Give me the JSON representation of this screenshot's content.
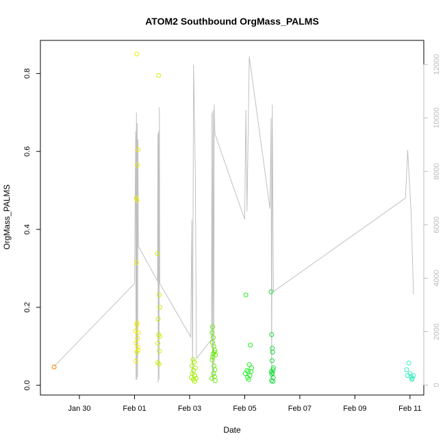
{
  "chart_data": {
    "type": "scatter",
    "title": "ATOM2 Southbound OrgMass_PALMS",
    "xlabel": "Date",
    "ylabel": "OrgMass_PALMS",
    "x_axis": {
      "range": [
        "2017-01-28T14:00",
        "2017-02-11T12:00"
      ],
      "ticks": [
        {
          "date": "2017-01-30",
          "label": "Jan 30"
        },
        {
          "date": "2017-02-01",
          "label": "Feb 01"
        },
        {
          "date": "2017-02-03",
          "label": "Feb 03"
        },
        {
          "date": "2017-02-05",
          "label": "Feb 05"
        },
        {
          "date": "2017-02-07",
          "label": "Feb 07"
        },
        {
          "date": "2017-02-09",
          "label": "Feb 09"
        },
        {
          "date": "2017-02-11",
          "label": "Feb 11"
        }
      ]
    },
    "y_axis": {
      "range": [
        -0.025,
        0.885
      ],
      "ticks": [
        {
          "value": 0.0,
          "label": "0.0"
        },
        {
          "value": 0.2,
          "label": "0.2"
        },
        {
          "value": 0.4,
          "label": "0.4"
        },
        {
          "value": 0.6,
          "label": "0.6"
        },
        {
          "value": 0.8,
          "label": "0.8"
        }
      ]
    },
    "y2_axis": {
      "range": [
        -370,
        12900
      ],
      "ticks": [
        {
          "value": 0,
          "label": "0"
        },
        {
          "value": 2000,
          "label": "2000"
        },
        {
          "value": 4000,
          "label": "4000"
        },
        {
          "value": 6000,
          "label": "6000"
        },
        {
          "value": 8000,
          "label": "8000"
        },
        {
          "value": 10000,
          "label": "10000"
        },
        {
          "value": 12000,
          "label": "12000"
        }
      ]
    },
    "colors": {
      "flight_1": "#ff7f00",
      "flight_2": "#eeee00",
      "flight_3": "#ccf000",
      "flight_4": "#a6ee00",
      "flight_5": "#66ee00",
      "flight_6": "#22ee22",
      "flight_7": "#11dd33",
      "flight_8": "#33eebb",
      "altitude_line": "#c0c0c0"
    },
    "series": [
      {
        "color_key": "flight_1",
        "points": [
          [
            "2017-01-29T02:00",
            0.047
          ]
        ]
      },
      {
        "color_key": "flight_2",
        "points": [
          [
            "2017-02-01T02:00",
            0.85
          ],
          [
            "2017-02-01T03:00",
            0.605
          ],
          [
            "2017-02-01T02:30",
            0.565
          ],
          [
            "2017-02-01T01:30",
            0.48
          ],
          [
            "2017-02-01T02:10",
            0.475
          ],
          [
            "2017-02-01T01:40",
            0.315
          ],
          [
            "2017-02-01T02:20",
            0.16
          ],
          [
            "2017-02-01T01:50",
            0.155
          ],
          [
            "2017-02-01T01:00",
            0.14
          ],
          [
            "2017-02-01T03:10",
            0.135
          ],
          [
            "2017-02-01T02:40",
            0.12
          ],
          [
            "2017-02-01T01:20",
            0.108
          ],
          [
            "2017-02-01T02:50",
            0.098
          ],
          [
            "2017-02-01T03:20",
            0.09
          ],
          [
            "2017-02-01T02:00",
            0.085
          ],
          [
            "2017-02-01T01:10",
            0.062
          ]
        ]
      },
      {
        "color_key": "flight_3",
        "points": [
          [
            "2017-02-01T21:00",
            0.795
          ],
          [
            "2017-02-01T20:00",
            0.338
          ],
          [
            "2017-02-01T21:30",
            0.232
          ],
          [
            "2017-02-01T22:00",
            0.2
          ],
          [
            "2017-02-01T20:40",
            0.17
          ],
          [
            "2017-02-01T21:10",
            0.13
          ],
          [
            "2017-02-01T21:50",
            0.125
          ],
          [
            "2017-02-01T20:20",
            0.108
          ],
          [
            "2017-02-01T21:40",
            0.088
          ],
          [
            "2017-02-01T20:10",
            0.058
          ],
          [
            "2017-02-01T21:20",
            0.055
          ]
        ]
      },
      {
        "color_key": "flight_4",
        "points": [
          [
            "2017-02-03T03:00",
            0.066
          ],
          [
            "2017-02-03T04:00",
            0.06
          ],
          [
            "2017-02-03T02:00",
            0.05
          ],
          [
            "2017-02-03T05:00",
            0.045
          ],
          [
            "2017-02-03T03:30",
            0.038
          ],
          [
            "2017-02-03T02:30",
            0.03
          ],
          [
            "2017-02-03T04:30",
            0.025
          ],
          [
            "2017-02-03T01:30",
            0.02
          ],
          [
            "2017-02-03T05:30",
            0.018
          ],
          [
            "2017-02-03T03:15",
            0.015
          ],
          [
            "2017-02-03T04:15",
            0.01
          ]
        ]
      },
      {
        "color_key": "flight_5",
        "points": [
          [
            "2017-02-03T20:00",
            0.15
          ],
          [
            "2017-02-03T19:30",
            0.135
          ],
          [
            "2017-02-03T20:40",
            0.122
          ],
          [
            "2017-02-03T19:50",
            0.11
          ],
          [
            "2017-02-03T21:00",
            0.1
          ],
          [
            "2017-02-03T22:00",
            0.09
          ],
          [
            "2017-02-03T21:30",
            0.085
          ],
          [
            "2017-02-03T20:20",
            0.08
          ],
          [
            "2017-02-03T22:30",
            0.078
          ],
          [
            "2017-02-03T20:10",
            0.072
          ],
          [
            "2017-02-03T19:40",
            0.065
          ],
          [
            "2017-02-03T21:10",
            0.05
          ],
          [
            "2017-02-03T22:10",
            0.04
          ],
          [
            "2017-02-03T20:50",
            0.03
          ],
          [
            "2017-02-03T21:40",
            0.022
          ],
          [
            "2017-02-03T19:20",
            0.018
          ],
          [
            "2017-02-03T22:20",
            0.012
          ]
        ]
      },
      {
        "color_key": "flight_6",
        "points": [
          [
            "2017-02-05T01:00",
            0.232
          ],
          [
            "2017-02-05T05:00",
            0.103
          ],
          [
            "2017-02-05T04:00",
            0.053
          ],
          [
            "2017-02-05T06:00",
            0.045
          ],
          [
            "2017-02-05T02:00",
            0.038
          ],
          [
            "2017-02-05T03:00",
            0.035
          ],
          [
            "2017-02-05T00:30",
            0.03
          ],
          [
            "2017-02-05T04:30",
            0.025
          ],
          [
            "2017-02-05T02:30",
            0.02
          ],
          [
            "2017-02-05T05:30",
            0.035
          ],
          [
            "2017-02-05T03:30",
            0.015
          ]
        ]
      },
      {
        "color_key": "flight_7",
        "points": [
          [
            "2017-02-05T23:00",
            0.24
          ],
          [
            "2017-02-05T23:30",
            0.13
          ],
          [
            "2017-02-06T00:00",
            0.095
          ],
          [
            "2017-02-06T00:20",
            0.085
          ],
          [
            "2017-02-05T23:50",
            0.063
          ],
          [
            "2017-02-06T01:00",
            0.045
          ],
          [
            "2017-02-06T00:40",
            0.04
          ],
          [
            "2017-02-05T23:10",
            0.035
          ],
          [
            "2017-02-06T00:10",
            0.032
          ],
          [
            "2017-02-05T23:40",
            0.028
          ],
          [
            "2017-02-06T00:50",
            0.02
          ],
          [
            "2017-02-05T23:20",
            0.012
          ],
          [
            "2017-02-06T00:30",
            0.01
          ]
        ]
      },
      {
        "color_key": "flight_8",
        "points": [
          [
            "2017-02-10T21:00",
            0.04
          ],
          [
            "2017-02-10T23:00",
            0.057
          ],
          [
            "2017-02-11T01:00",
            0.022
          ],
          [
            "2017-02-11T02:00",
            0.018
          ],
          [
            "2017-02-11T00:00",
            0.03
          ],
          [
            "2017-02-10T22:00",
            0.025
          ],
          [
            "2017-02-11T03:00",
            0.025
          ],
          [
            "2017-02-11T01:30",
            0.015
          ]
        ]
      }
    ],
    "altitude_series": {
      "axis": "y2",
      "points": [
        [
          "2017-01-29T02:00",
          700
        ],
        [
          "2017-02-01T00:00",
          3800
        ],
        [
          "2017-02-01T01:00",
          9500
        ],
        [
          "2017-02-01T01:20",
          200
        ],
        [
          "2017-02-01T01:40",
          10200
        ],
        [
          "2017-02-01T02:00",
          200
        ],
        [
          "2017-02-01T02:20",
          9800
        ],
        [
          "2017-02-01T02:40",
          300
        ],
        [
          "2017-02-01T03:00",
          9200
        ],
        [
          "2017-02-01T03:20",
          5200
        ],
        [
          "2017-02-01T20:00",
          3900
        ],
        [
          "2017-02-01T20:20",
          9400
        ],
        [
          "2017-02-01T20:40",
          100
        ],
        [
          "2017-02-01T21:00",
          9500
        ],
        [
          "2017-02-01T21:20",
          200
        ],
        [
          "2017-02-01T21:40",
          10400
        ],
        [
          "2017-02-01T22:00",
          3800
        ],
        [
          "2017-02-03T01:00",
          1800
        ],
        [
          "2017-02-03T02:00",
          6200
        ],
        [
          "2017-02-03T02:30",
          300
        ],
        [
          "2017-02-03T03:30",
          12000
        ],
        [
          "2017-02-03T05:00",
          8000
        ],
        [
          "2017-02-03T06:00",
          1000
        ],
        [
          "2017-02-03T19:00",
          1700
        ],
        [
          "2017-02-03T19:30",
          10200
        ],
        [
          "2017-02-03T20:00",
          200
        ],
        [
          "2017-02-03T20:30",
          10300
        ],
        [
          "2017-02-03T21:00",
          300
        ],
        [
          "2017-02-03T21:30",
          10500
        ],
        [
          "2017-02-03T22:00",
          9400
        ],
        [
          "2017-02-05T00:00",
          6200
        ],
        [
          "2017-02-05T01:00",
          10300
        ],
        [
          "2017-02-05T02:00",
          6500
        ],
        [
          "2017-02-05T04:00",
          12300
        ],
        [
          "2017-02-05T22:00",
          6600
        ],
        [
          "2017-02-05T23:00",
          10000
        ],
        [
          "2017-02-05T23:30",
          200
        ],
        [
          "2017-02-06T00:00",
          10500
        ],
        [
          "2017-02-06T01:00",
          3500
        ],
        [
          "2017-02-10T20:00",
          7000
        ],
        [
          "2017-02-10T22:00",
          8800
        ],
        [
          "2017-02-11T01:00",
          6400
        ],
        [
          "2017-02-11T03:00",
          3400
        ]
      ]
    },
    "grid": false,
    "legend": "none"
  }
}
